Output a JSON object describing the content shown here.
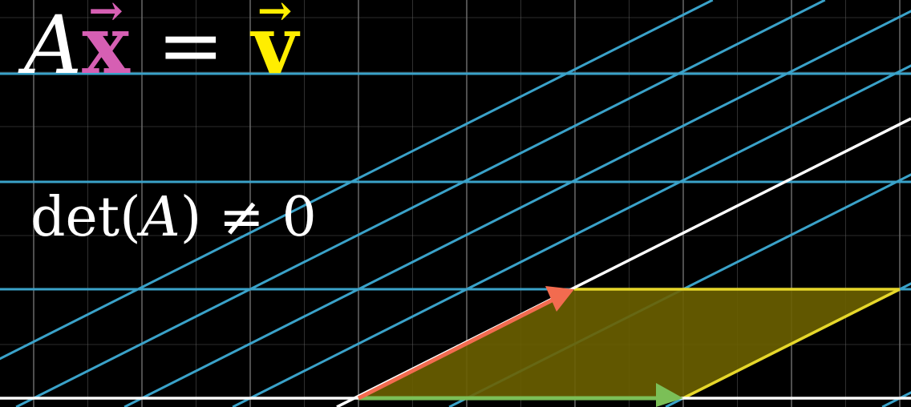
{
  "equation_main": {
    "A": "A",
    "x": "x",
    "equals": "=",
    "v": "v",
    "vector_arrow": "→"
  },
  "equation_det": {
    "prefix": "det(",
    "A": "A",
    "suffix": ")",
    "neq": "≠",
    "zero": "0"
  },
  "colors": {
    "background": "#000000",
    "grid": "#6e6e6e",
    "transformed_grid": "#3aa2c9",
    "axis": "#ffffff",
    "x_vector": "#d65fb3",
    "v_vector": "#ffee00",
    "red_vector": "#f26b4f",
    "green_vector": "#7bbf57",
    "parallelogram_fill": "#6b6000",
    "parallelogram_edge": "#e6d72a"
  }
}
